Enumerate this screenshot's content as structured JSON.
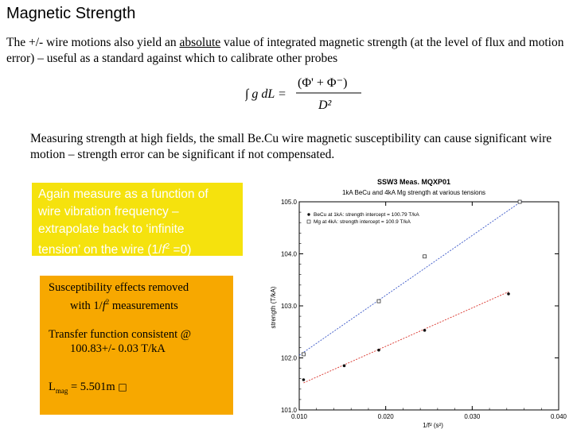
{
  "slide": {
    "title": "Magnetic Strength",
    "para1_part1": "The +/- wire motions also yield an ",
    "para1_underlined": "absolute",
    "para1_part2": " value of integrated magnetic strength (at the level of flux and motion error) – useful as a standard against which to calibrate other probes",
    "formula": {
      "lhs": "∫ g dL =",
      "numerator": "(Φ' + Φ⁻)",
      "denominator": "D²"
    },
    "para2": "Measuring strength at high fields, the small Be.Cu wire magnetic susceptibility can cause significant wire motion – strength error can be significant if not compensated.",
    "yellow_note": {
      "line1": "Again measure as a function of",
      "line2": "wire vibration frequency –",
      "line3": "extrapolate back to ‘infinite",
      "line4a": "tension’ on the wire (1/",
      "line4b": "f",
      "line4c": "2",
      "line4d": " =0)"
    },
    "orange_note": {
      "line1": "Susceptibility effects removed",
      "line2a": "with 1/",
      "line2b": "f",
      "line2c": "2",
      "line2d": " measurements",
      "line3": "Transfer function consistent @",
      "line4": "100.83+/- 0.03 T/kA",
      "line5a": "L",
      "line5b": "mag",
      "line5c": " = 5.501m",
      "line5d": "□"
    },
    "colors": {
      "yellow_box": "#f5e20d",
      "orange_box": "#f7a800",
      "series_blue": "#3a57c8",
      "series_red": "#d9322a"
    }
  },
  "chart_data": {
    "type": "scatter",
    "title": "SSW3 Meas. MQXP01",
    "subtitle": "1kA BeCu and 4kA Mg strength at various tensions",
    "xlabel": "1/f² (s²)",
    "ylabel": "strength (T/kA)",
    "xlim": [
      0.01,
      0.04
    ],
    "ylim": [
      101.0,
      105.0
    ],
    "xticks": [
      "0.010",
      "0.020",
      "0.030",
      "0.040"
    ],
    "yticks": [
      "101.0",
      "102.0",
      "103.0",
      "104.0",
      "105.0"
    ],
    "legend_position": "top-left",
    "grid": false,
    "series": [
      {
        "name": "BeCu at 1kA: strength intercept = 100.79 T/kA",
        "marker": "filled-circle",
        "color": "#d9322a",
        "x": [
          0.0105,
          0.0152,
          0.0192,
          0.0245,
          0.0342
        ],
        "y": [
          101.58,
          101.85,
          102.15,
          102.53,
          103.23
        ],
        "fit": {
          "x": [
            0.0105,
            0.0342
          ],
          "y": [
            101.52,
            103.27
          ]
        }
      },
      {
        "name": "Mg at 4kA: strength intercept = 100.9 T/kA",
        "marker": "open-square",
        "color": "#3a57c8",
        "x": [
          0.0105,
          0.0192,
          0.0245,
          0.0355
        ],
        "y": [
          102.07,
          103.09,
          103.95,
          105.0
        ],
        "fit": {
          "x": [
            0.01,
            0.0358
          ],
          "y": [
            102.05,
            105.02
          ]
        }
      }
    ]
  }
}
